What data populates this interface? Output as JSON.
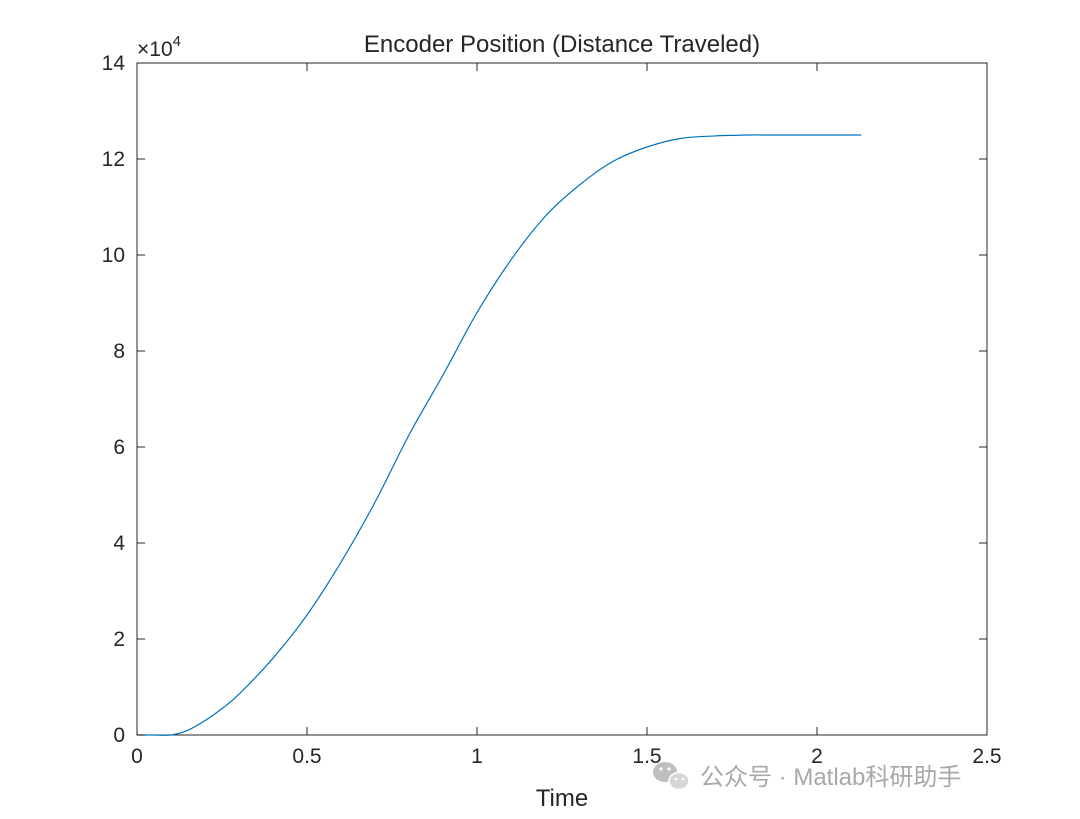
{
  "chart_data": {
    "type": "line",
    "title": "Encoder Position (Distance Traveled)",
    "xlabel": "Time",
    "ylabel": "",
    "xlim": [
      0,
      2.5
    ],
    "ylim": [
      0,
      14
    ],
    "xticks": [
      0,
      0.5,
      1,
      1.5,
      2,
      2.5
    ],
    "xtick_labels": [
      "0",
      "0.5",
      "1",
      "1.5",
      "2",
      "2.5"
    ],
    "yticks": [
      0,
      2,
      4,
      6,
      8,
      10,
      12,
      14
    ],
    "ytick_labels": [
      "0",
      "2",
      "4",
      "6",
      "8",
      "10",
      "12",
      "14"
    ],
    "y_exponent_label": "×10",
    "y_exponent_power": "4",
    "grid": false,
    "series": [
      {
        "color": "#0072BD",
        "x": [
          0,
          0.05,
          0.1,
          0.15,
          0.2,
          0.25,
          0.3,
          0.4,
          0.5,
          0.6,
          0.7,
          0.8,
          0.9,
          1.0,
          1.1,
          1.2,
          1.3,
          1.4,
          1.5,
          1.6,
          1.7,
          1.8,
          1.85,
          1.9,
          2.0,
          2.1,
          2.13
        ],
        "y": [
          0,
          0,
          0,
          0.1,
          0.3,
          0.55,
          0.85,
          1.6,
          2.5,
          3.6,
          4.85,
          6.25,
          7.5,
          8.8,
          9.9,
          10.8,
          11.45,
          11.95,
          12.25,
          12.43,
          12.48,
          12.5,
          12.5,
          12.5,
          12.5,
          12.5,
          12.5
        ]
      }
    ]
  },
  "watermark": {
    "icon": "wechat-icon",
    "text": "公众号 · Matlab科研助手"
  }
}
